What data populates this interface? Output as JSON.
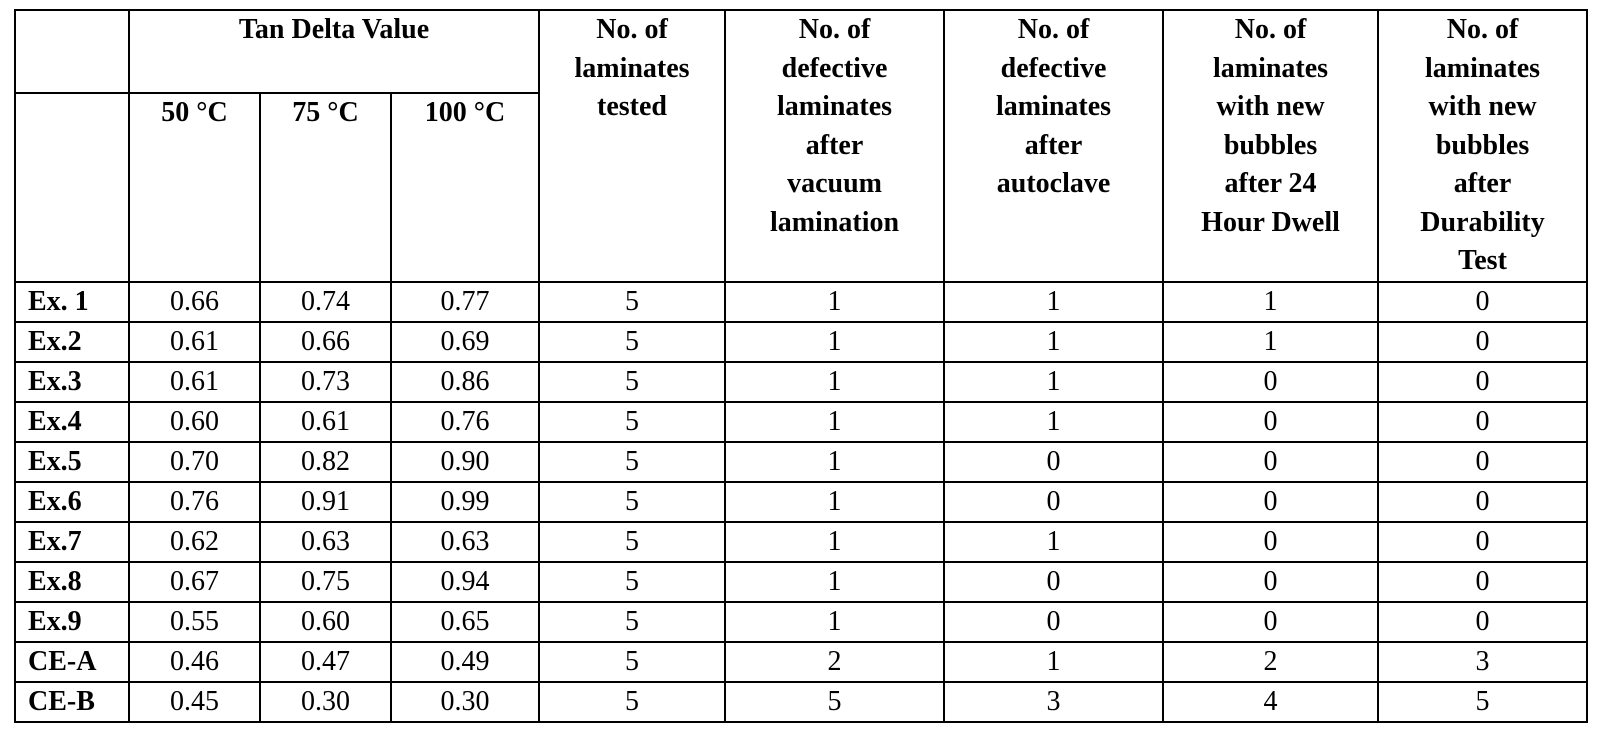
{
  "table": {
    "group_header": "Tan Delta Value",
    "temp_headers": [
      "50 °C",
      "75 °C",
      "100 °C"
    ],
    "col_headers": [
      "No. of\nlaminates\ntested",
      "No. of\ndefective\nlaminates\nafter\nvacuum\nlamination",
      "No. of\ndefective\nlaminates\nafter\nautoclave",
      "No. of\nlaminates\nwith new\nbubbles\nafter 24\nHour Dwell",
      "No. of\nlaminates\nwith new\nbubbles\nafter\nDurability\nTest"
    ],
    "rows": [
      [
        "Ex. 1",
        "0.66",
        "0.74",
        "0.77",
        "5",
        "1",
        "1",
        "1",
        "0"
      ],
      [
        "Ex.2",
        "0.61",
        "0.66",
        "0.69",
        "5",
        "1",
        "1",
        "1",
        "0"
      ],
      [
        "Ex.3",
        "0.61",
        "0.73",
        "0.86",
        "5",
        "1",
        "1",
        "0",
        "0"
      ],
      [
        "Ex.4",
        "0.60",
        "0.61",
        "0.76",
        "5",
        "1",
        "1",
        "0",
        "0"
      ],
      [
        "Ex.5",
        "0.70",
        "0.82",
        "0.90",
        "5",
        "1",
        "0",
        "0",
        "0"
      ],
      [
        "Ex.6",
        "0.76",
        "0.91",
        "0.99",
        "5",
        "1",
        "0",
        "0",
        "0"
      ],
      [
        "Ex.7",
        "0.62",
        "0.63",
        "0.63",
        "5",
        "1",
        "1",
        "0",
        "0"
      ],
      [
        "Ex.8",
        "0.67",
        "0.75",
        "0.94",
        "5",
        "1",
        "0",
        "0",
        "0"
      ],
      [
        "Ex.9",
        "0.55",
        "0.60",
        "0.65",
        "5",
        "1",
        "0",
        "0",
        "0"
      ],
      [
        "CE-A",
        "0.46",
        "0.47",
        "0.49",
        "5",
        "2",
        "1",
        "2",
        "3"
      ],
      [
        "CE-B",
        "0.45",
        "0.30",
        "0.30",
        "5",
        "5",
        "3",
        "4",
        "5"
      ]
    ]
  }
}
